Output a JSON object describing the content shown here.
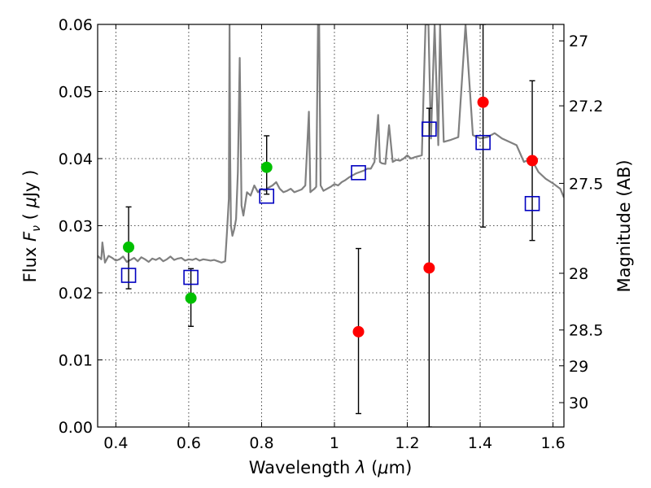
{
  "chart_data": {
    "type": "scatter",
    "x_ticks": [
      "0.4",
      "0.6",
      "0.8",
      "1",
      "1.2",
      "1.4",
      "1.6"
    ],
    "y_ticks": [
      "0.00",
      "0.01",
      "0.02",
      "0.03",
      "0.04",
      "0.05",
      "0.06"
    ],
    "right_ticks": [
      "27",
      "27.2",
      "27.5",
      "28",
      "28.5",
      "29",
      "30"
    ],
    "xlim": [
      0.35,
      1.63
    ],
    "ylim": [
      0.0,
      0.06
    ],
    "x_tick_values": [
      0.4,
      0.6,
      0.8,
      1.0,
      1.2,
      1.4,
      1.6
    ],
    "y_tick_values": [
      0.0,
      0.01,
      0.02,
      0.03,
      0.04,
      0.05,
      0.06
    ],
    "right_tick_values": [
      27,
      27.2,
      27.5,
      28,
      28.5,
      29,
      30
    ],
    "xlabel_prefix": "Wavelength  ",
    "xlabel_symbol": "λ",
    "xlabel_unit_open": " (",
    "xlabel_mu": "μ",
    "xlabel_unit_close": "m)",
    "ylabel_prefix": "Flux  ",
    "ylabel_symbol": "F",
    "ylabel_sub": "ν",
    "ylabel_unit_open": "  (  ",
    "ylabel_mu": "μ",
    "ylabel_unit_close": "Jy  )",
    "right_label": "Magnitude (AB)",
    "grid": true,
    "series": [
      {
        "kind": "points",
        "color": "#00c000",
        "marker": "circle",
        "points": [
          {
            "x": 0.435,
            "y": 0.0268,
            "err_lo": 0.0062,
            "err_hi": 0.006
          },
          {
            "x": 0.606,
            "y": 0.0192,
            "err_lo": 0.0042,
            "err_hi": 0.0044
          },
          {
            "x": 0.814,
            "y": 0.0387,
            "err_lo": 0.004,
            "err_hi": 0.0047
          }
        ]
      },
      {
        "kind": "points",
        "color": "#ff0000",
        "marker": "circle",
        "points": [
          {
            "x": 1.066,
            "y": 0.0142,
            "err_lo": 0.0122,
            "err_hi": 0.0124
          },
          {
            "x": 1.26,
            "y": 0.0237,
            "err_lo": 0.0237,
            "err_hi": 0.0238
          },
          {
            "x": 1.408,
            "y": 0.0484,
            "err_lo": 0.0186,
            "err_hi": 0.0116
          },
          {
            "x": 1.543,
            "y": 0.0397,
            "err_lo": 0.0119,
            "err_hi": 0.0119
          }
        ]
      },
      {
        "kind": "model-points",
        "color": "#0000c0",
        "marker": "open-square",
        "points": [
          {
            "x": 0.435,
            "y": 0.0226
          },
          {
            "x": 0.606,
            "y": 0.0223
          },
          {
            "x": 0.814,
            "y": 0.0344
          },
          {
            "x": 1.066,
            "y": 0.0379
          },
          {
            "x": 1.26,
            "y": 0.0444
          },
          {
            "x": 1.408,
            "y": 0.0424
          },
          {
            "x": 1.543,
            "y": 0.0333
          }
        ]
      },
      {
        "kind": "spectrum",
        "color": "#808080",
        "x": [
          0.35,
          0.36,
          0.363,
          0.37,
          0.38,
          0.39,
          0.4,
          0.41,
          0.42,
          0.43,
          0.44,
          0.45,
          0.46,
          0.47,
          0.48,
          0.49,
          0.5,
          0.51,
          0.52,
          0.53,
          0.54,
          0.55,
          0.56,
          0.57,
          0.58,
          0.59,
          0.6,
          0.61,
          0.62,
          0.63,
          0.64,
          0.65,
          0.66,
          0.67,
          0.68,
          0.69,
          0.7,
          0.705,
          0.71,
          0.712,
          0.714,
          0.716,
          0.72,
          0.725,
          0.73,
          0.735,
          0.74,
          0.745,
          0.75,
          0.76,
          0.77,
          0.78,
          0.79,
          0.8,
          0.81,
          0.82,
          0.83,
          0.84,
          0.85,
          0.86,
          0.87,
          0.88,
          0.89,
          0.9,
          0.91,
          0.92,
          0.93,
          0.934,
          0.938,
          0.945,
          0.95,
          0.955,
          0.958,
          0.962,
          0.97,
          0.98,
          0.99,
          1.0,
          1.01,
          1.02,
          1.03,
          1.04,
          1.05,
          1.06,
          1.07,
          1.08,
          1.09,
          1.1,
          1.11,
          1.12,
          1.125,
          1.13,
          1.14,
          1.15,
          1.16,
          1.17,
          1.18,
          1.19,
          1.2,
          1.21,
          1.22,
          1.24,
          1.25,
          1.255,
          1.258,
          1.265,
          1.275,
          1.285,
          1.29,
          1.3,
          1.32,
          1.34,
          1.36,
          1.38,
          1.4,
          1.42,
          1.44,
          1.46,
          1.48,
          1.5,
          1.52,
          1.54,
          1.56,
          1.58,
          1.6,
          1.62,
          1.63
        ],
        "y": [
          0.0255,
          0.025,
          0.0275,
          0.0245,
          0.0255,
          0.0252,
          0.0248,
          0.025,
          0.0254,
          0.0246,
          0.0249,
          0.0252,
          0.0247,
          0.0253,
          0.025,
          0.0246,
          0.0251,
          0.0249,
          0.0252,
          0.0247,
          0.025,
          0.0254,
          0.0249,
          0.0251,
          0.0252,
          0.0248,
          0.025,
          0.0249,
          0.0251,
          0.0248,
          0.025,
          0.0249,
          0.0248,
          0.0249,
          0.0247,
          0.0245,
          0.0247,
          0.029,
          0.034,
          0.06,
          0.04,
          0.03,
          0.0285,
          0.0295,
          0.031,
          0.038,
          0.055,
          0.033,
          0.0315,
          0.035,
          0.0345,
          0.036,
          0.035,
          0.0355,
          0.0352,
          0.0357,
          0.036,
          0.0365,
          0.0355,
          0.035,
          0.0352,
          0.0355,
          0.035,
          0.0352,
          0.0354,
          0.036,
          0.047,
          0.035,
          0.0352,
          0.0355,
          0.0358,
          0.06,
          0.06,
          0.036,
          0.0352,
          0.0355,
          0.0358,
          0.0362,
          0.036,
          0.0365,
          0.0368,
          0.0372,
          0.0375,
          0.0378,
          0.038,
          0.0382,
          0.0385,
          0.0385,
          0.0395,
          0.0465,
          0.0395,
          0.0393,
          0.0392,
          0.045,
          0.0395,
          0.0398,
          0.0397,
          0.04,
          0.0405,
          0.04,
          0.0402,
          0.0405,
          0.06,
          0.06,
          0.06,
          0.043,
          0.06,
          0.042,
          0.06,
          0.0425,
          0.0428,
          0.0432,
          0.06,
          0.0435,
          0.043,
          0.0432,
          0.0438,
          0.043,
          0.0425,
          0.042,
          0.0395,
          0.04,
          0.038,
          0.037,
          0.0363,
          0.0355,
          0.0342
        ]
      }
    ]
  }
}
